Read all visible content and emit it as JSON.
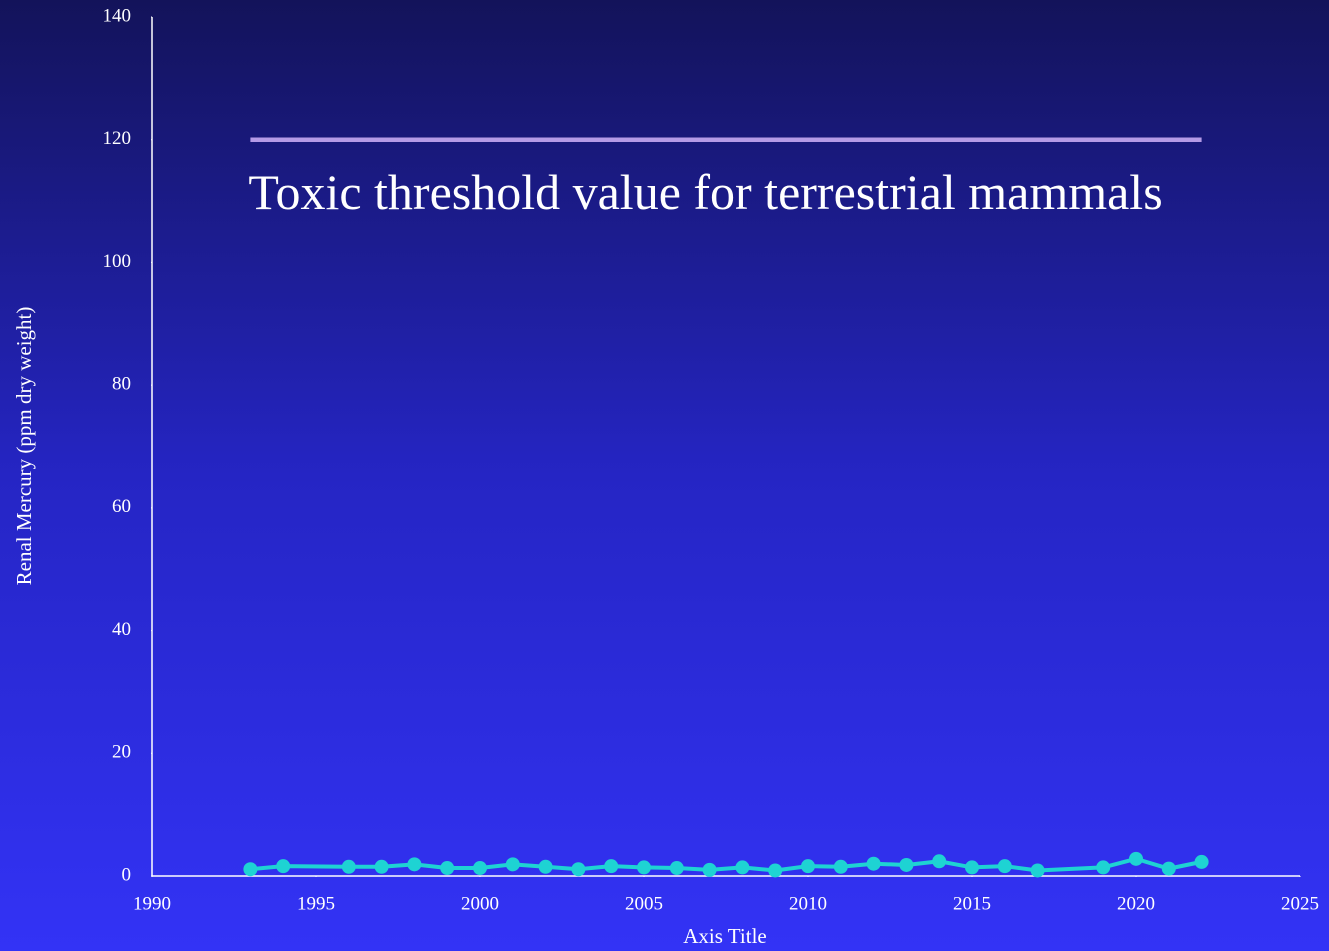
{
  "chart_data": {
    "type": "line",
    "xlabel": "Axis Title",
    "ylabel": "Renal Mercury (ppm dry weight)",
    "annotation": "Toxic threshold value for terrestrial mammals",
    "xlim": [
      1990,
      2025
    ],
    "xticks": [
      1990,
      1995,
      2000,
      2005,
      2010,
      2015,
      2020,
      2025
    ],
    "ylim": [
      0,
      140
    ],
    "yticks": [
      0,
      20,
      40,
      60,
      80,
      100,
      120,
      140
    ],
    "grid": false,
    "series": [
      {
        "color": "#1ed3d3",
        "markers": true,
        "x": [
          1993,
          1994,
          1996,
          1997,
          1998,
          1999,
          2000,
          2001,
          2002,
          2003,
          2004,
          2005,
          2006,
          2007,
          2008,
          2009,
          2010,
          2011,
          2012,
          2013,
          2014,
          2015,
          2016,
          2017,
          2019,
          2020,
          2021,
          2022
        ],
        "values": [
          1.1,
          1.6,
          1.5,
          1.5,
          1.9,
          1.3,
          1.3,
          1.9,
          1.5,
          1.1,
          1.6,
          1.4,
          1.3,
          1.0,
          1.4,
          0.9,
          1.6,
          1.5,
          2.0,
          1.8,
          2.4,
          1.4,
          1.6,
          0.9,
          1.4,
          2.8,
          1.2,
          2.3
        ]
      },
      {
        "color": "#b49ae6",
        "markers": false,
        "x": [
          1993,
          2022
        ],
        "values": [
          120,
          120
        ]
      }
    ]
  }
}
